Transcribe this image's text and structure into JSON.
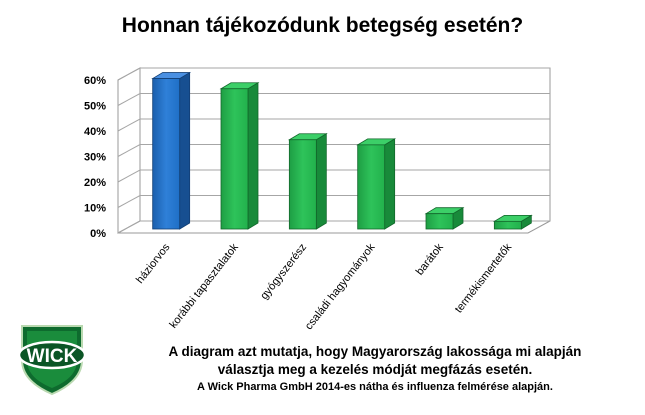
{
  "chart_data": {
    "type": "bar",
    "title": "Honnan tájékozódunk betegség esetén?",
    "categories": [
      "háziorvos",
      "korábbi tapasztalatok",
      "gyógyszerész",
      "családi hagyományok",
      "barátok",
      "termékismertetők"
    ],
    "values": [
      59,
      55,
      35,
      33,
      6,
      3
    ],
    "ylim": [
      0,
      60
    ],
    "yticks": [
      "0%",
      "10%",
      "20%",
      "30%",
      "40%",
      "50%",
      "60%"
    ],
    "grid": true,
    "colors": {
      "highlight": "#1f6fc6",
      "bar": "#22b14c"
    }
  },
  "logo": {
    "text": "WICK"
  },
  "caption": {
    "line1": "A diagram azt mutatja, hogy Magyarország lakossága mi alapján",
    "line2": "választja meg a kezelés módját megfázás esetén.",
    "source": "A Wick Pharma GmbH 2014-es nátha és influenza felmérése alapján."
  }
}
